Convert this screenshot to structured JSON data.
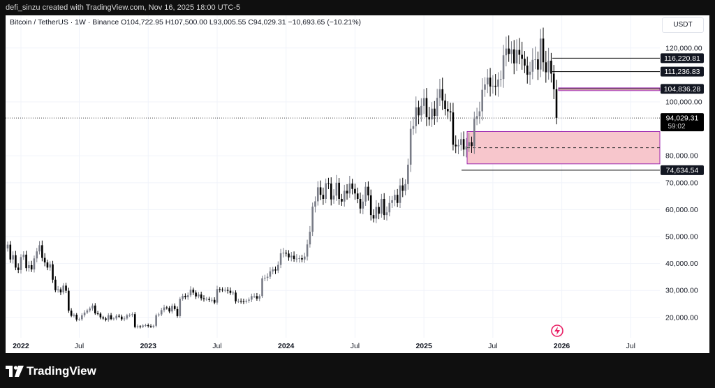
{
  "header": {
    "credit": "defi_sinzu created with TradingView.com, Nov 16, 2025 18:00 UTC-5"
  },
  "symbol_bar": {
    "name": "Bitcoin / TetherUS · 1W · Binance",
    "open": "O104,722.95",
    "high": "H107,500.00",
    "low": "L93,005.55",
    "close": "C94,029.31",
    "change": "−10,693.65 (−10.21%)"
  },
  "currency": "USDT",
  "footer": {
    "brand": "TradingView"
  },
  "colors": {
    "up": "#787b86",
    "down": "#000000",
    "zone_fill": "#f7c6cc",
    "zone_border": "#9c27b0",
    "grid": "#f0f3fa",
    "axis_text": "#131722",
    "footer_bg": "#0f0f0f"
  },
  "icons": {
    "flash": "flash-icon",
    "brand": "tradingview-logo"
  },
  "chart_data": {
    "type": "candlestick",
    "title": "Bitcoin / TetherUS · 1W · Binance",
    "xlabel": "",
    "ylabel": "",
    "ylim": [
      14000,
      128500
    ],
    "x_ticks": [
      "2022",
      "Jul",
      "2023",
      "Jul",
      "2024",
      "Jul",
      "2025",
      "Jul",
      "2026",
      "Jul"
    ],
    "y_ticks": [
      20000,
      30000,
      40000,
      50000,
      60000,
      70000,
      80000,
      100000,
      120000
    ],
    "y_tick_labels": [
      "20,000.00",
      "30,000.00",
      "40,000.00",
      "50,000.00",
      "60,000.00",
      "70,000.00",
      "80,000.00",
      "100,000.00",
      "120,000.00"
    ],
    "closes": [
      47000,
      41500,
      43100,
      38500,
      37600,
      42400,
      43300,
      38300,
      39400,
      37800,
      41900,
      44500,
      46800,
      42100,
      40400,
      38500,
      39700,
      34000,
      30100,
      30400,
      29300,
      31800,
      29900,
      22500,
      20600,
      21000,
      19200,
      19300,
      20800,
      21800,
      22600,
      23300,
      24400,
      21500,
      21400,
      20000,
      19600,
      19100,
      20800,
      19400,
      19600,
      20600,
      20300,
      19300,
      19600,
      20800,
      20900,
      21200,
      16400,
      16700,
      16500,
      17000,
      17100,
      16800,
      16500,
      16900,
      20800,
      21100,
      22700,
      23700,
      23500,
      22200,
      24300,
      23100,
      20500,
      26900,
      28000,
      27500,
      28200,
      30300,
      29200,
      27800,
      28500,
      27100,
      26800,
      26900,
      26500,
      26500,
      25500,
      30500,
      30300,
      30200,
      30200,
      29900,
      29100,
      29200,
      26000,
      26100,
      25900,
      25800,
      26200,
      26600,
      27900,
      27900,
      27000,
      27900,
      34500,
      34700,
      35100,
      37100,
      37800,
      37400,
      39500,
      43800,
      44000,
      43700,
      42300,
      42900,
      41700,
      41800,
      42000,
      41500,
      42600,
      47100,
      51800,
      61100,
      63100,
      68300,
      65500,
      64000,
      69800,
      69700,
      63800,
      65200,
      70000,
      64000,
      63000,
      67000,
      66000,
      69700,
      67700,
      66000,
      64000,
      60400,
      63000,
      68500,
      65300,
      58000,
      56700,
      61000,
      58500,
      64000,
      58000,
      59000,
      62500,
      63500,
      65500,
      62500,
      69000,
      67000,
      69500,
      76700,
      90000,
      91000,
      98000,
      95000,
      98500,
      101400,
      94300,
      93500,
      97500,
      94800,
      101500,
      104700,
      100500,
      97400,
      96500,
      96100,
      84100,
      83500,
      84000,
      86200,
      82300,
      83500,
      85000,
      83600,
      93700,
      94700,
      96500,
      104500,
      106500,
      109000,
      105700,
      106000,
      105600,
      108300,
      108500,
      117300,
      119800,
      117800,
      119500,
      114300,
      119300,
      117500,
      116000,
      113500,
      110100,
      111200,
      115600,
      115800,
      112000,
      123500,
      114700,
      111000,
      115300,
      110500,
      104700,
      94029.31
    ],
    "levels": [
      {
        "price": 116220.81,
        "label": "116,220.81"
      },
      {
        "price": 111236.83,
        "label": "111,236.83"
      },
      {
        "price": 104836.28,
        "label": "104,836.28"
      },
      {
        "price": 74634.54,
        "label": "74,634.54"
      }
    ],
    "last_price": {
      "value": 94029.31,
      "label": "94,029.31",
      "countdown": "59:02"
    },
    "zones": [
      {
        "top": 89000,
        "bottom": 77000,
        "mid": 83000
      },
      {
        "top": 105200,
        "bottom": 104200
      }
    ]
  }
}
